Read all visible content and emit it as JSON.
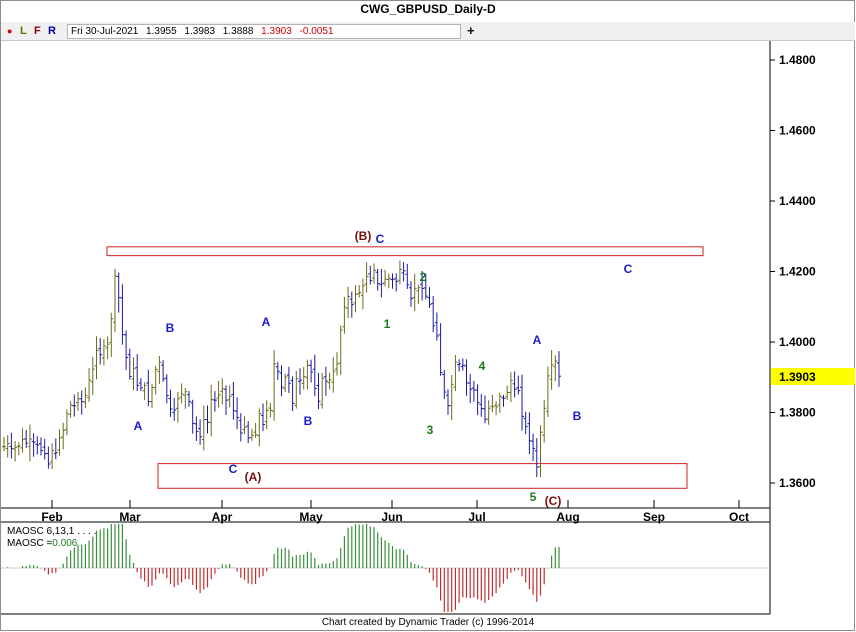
{
  "window": {
    "title": "CWG_GBPUSD_Daily-D"
  },
  "toolbar": {
    "flags": [
      {
        "label": "●",
        "color": "#cc0000",
        "x": 6
      },
      {
        "label": "L",
        "color": "#6b6b00",
        "x": 19
      },
      {
        "label": "F",
        "color": "#990000",
        "x": 33
      },
      {
        "label": "R",
        "color": "#0000aa",
        "x": 47
      }
    ],
    "date": "Fri 30-Jul-2021",
    "open": "1.3955",
    "high": "1.3983",
    "low": "1.3888",
    "close": "1.3903",
    "change": "-0.0051",
    "crosshair_icon": "plus-icon"
  },
  "chart_data": {
    "type": "ohlc-bar",
    "title": "CWG_GBPUSD_Daily-D",
    "y_ticks": [
      "1.4800",
      "1.4600",
      "1.4400",
      "1.4200",
      "1.4000",
      "1.3800",
      "1.3600"
    ],
    "ylim": [
      1.3545,
      1.4905
    ],
    "last_price": "1.3903",
    "last_price_color": "#ffff00",
    "x_ticks": [
      "Feb",
      "Mar",
      "Apr",
      "May",
      "Jun",
      "Jul",
      "Aug",
      "Sep",
      "Oct"
    ],
    "bar_colors": {
      "up_swing": "#6b6b1a",
      "down_swing": "#1a1aa0"
    },
    "closes": [
      1.3703,
      1.3712,
      1.3698,
      1.3701,
      1.3705,
      1.3724,
      1.3713,
      1.3725,
      1.3716,
      1.3708,
      1.3692,
      1.3683,
      1.3654,
      1.3692,
      1.3686,
      1.3728,
      1.3749,
      1.3796,
      1.3821,
      1.3819,
      1.3839,
      1.3831,
      1.3848,
      1.3892,
      1.3923,
      1.3976,
      1.3964,
      1.3989,
      1.3994,
      1.4066,
      1.4187,
      1.4126,
      1.4021,
      1.3956,
      1.3902,
      1.3924,
      1.3877,
      1.387,
      1.3877,
      1.3831,
      1.3871,
      1.3922,
      1.3942,
      1.3895,
      1.3848,
      1.381,
      1.3807,
      1.3839,
      1.3852,
      1.3859,
      1.3831,
      1.3769,
      1.3746,
      1.3731,
      1.378,
      1.3772,
      1.3837,
      1.3835,
      1.385,
      1.3867,
      1.3835,
      1.3846,
      1.3805,
      1.3786,
      1.3742,
      1.3758,
      1.3728,
      1.3735,
      1.3737,
      1.3797,
      1.3766,
      1.3806,
      1.3806,
      1.3938,
      1.3917,
      1.3872,
      1.3901,
      1.3883,
      1.3826,
      1.3896,
      1.3892,
      1.3902,
      1.3934,
      1.3915,
      1.3868,
      1.3832,
      1.3897,
      1.3889,
      1.3893,
      1.3917,
      1.3938,
      1.4034,
      1.4099,
      1.4129,
      1.4106,
      1.4135,
      1.414,
      1.4159,
      1.4186,
      1.4174,
      1.4203,
      1.4166,
      1.4165,
      1.4178,
      1.4181,
      1.4178,
      1.4172,
      1.4206,
      1.4202,
      1.4162,
      1.4123,
      1.4152,
      1.4154,
      1.4152,
      1.413,
      1.4107,
      1.4046,
      1.4017,
      1.3913,
      1.3858,
      1.3819,
      1.388,
      1.3943,
      1.3938,
      1.3934,
      1.3884,
      1.3866,
      1.3864,
      1.3828,
      1.3811,
      1.3781,
      1.3812,
      1.3816,
      1.3816,
      1.3846,
      1.384,
      1.3857,
      1.3891,
      1.3866,
      1.3862,
      1.3789,
      1.376,
      1.372,
      1.3698,
      1.3645,
      1.3744,
      1.3812,
      1.3904,
      1.3935,
      1.3946,
      1.3903
    ],
    "wave_labels": [
      {
        "text": "(B)",
        "color": "#7a0f0f"
      },
      {
        "text": "C",
        "color": "#1a1ad0"
      },
      {
        "text": "2",
        "color": "#1a7a1a"
      },
      {
        "text": "C",
        "color": "#1a1ad0"
      },
      {
        "text": "B",
        "color": "#1a1ad0"
      },
      {
        "text": "A",
        "color": "#1a1ad0"
      },
      {
        "text": "1",
        "color": "#1a7a1a"
      },
      {
        "text": "A",
        "color": "#1a1ad0"
      },
      {
        "text": "4",
        "color": "#1a7a1a"
      },
      {
        "text": "A",
        "color": "#1a1ad0"
      },
      {
        "text": "B",
        "color": "#1a1ad0"
      },
      {
        "text": "B",
        "color": "#1a1ad0"
      },
      {
        "text": "3",
        "color": "#1a7a1a"
      },
      {
        "text": "C",
        "color": "#1a1ad0"
      },
      {
        "text": "(A)",
        "color": "#7a0f0f"
      },
      {
        "text": "5",
        "color": "#1a7a1a"
      },
      {
        "text": "(C)",
        "color": "#7a0f0f"
      }
    ],
    "zones": [
      {
        "color": "#cc2222",
        "y_range": [
          1.4245,
          1.427
        ]
      },
      {
        "color": "#cc2222",
        "y_range": [
          1.3585,
          1.3655
        ]
      }
    ],
    "oscillator": {
      "label": "MAOSC 6,13,1 . . . .",
      "value_label": "MAOSC =",
      "value": "0.006",
      "up_color": "#3a8f3a",
      "down_color": "#c03030"
    }
  },
  "footer": {
    "credit": "Chart created by Dynamic Trader  (c) 1996-2014"
  }
}
